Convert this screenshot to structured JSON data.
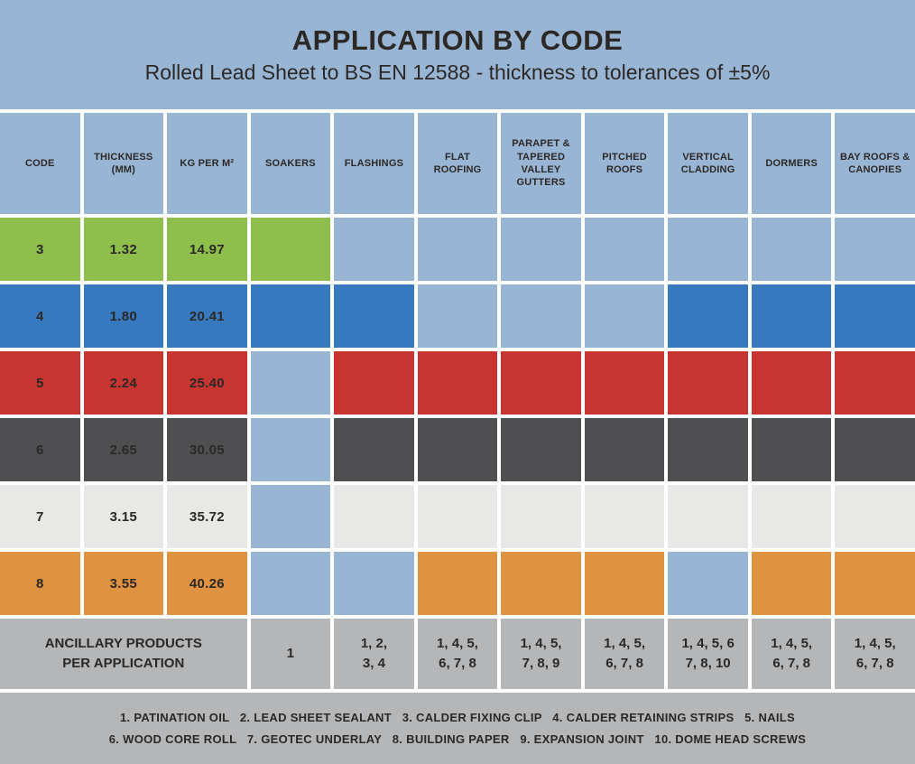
{
  "colors": {
    "background": "#99b5d4",
    "inactive_cell": "#99b5d4",
    "grid": "#ffffff",
    "band_gray": "#b5b6b8",
    "text": "#2b2826",
    "row_green": "#8ebf4d",
    "row_blue": "#3779be",
    "row_red": "#c83530",
    "row_darkgray": "#4f4f51",
    "row_lightgray": "#e8e8e7",
    "row_orange": "#df9240"
  },
  "chart_data": {
    "type": "table",
    "title": "APPLICATION BY CODE",
    "subtitle": "Rolled Lead Sheet to BS EN 12588 - thickness to tolerances of ±5%",
    "columns": [
      "CODE",
      "THICKNESS (MM)",
      "KG PER M²",
      "SOAKERS",
      "FLASHINGS",
      "FLAT ROOFING",
      "PARAPET & TAPERED VALLEY GUTTERS",
      "PITCHED ROOFS",
      "VERTICAL CLADDING",
      "DORMERS",
      "BAY ROOFS & CANOPIES"
    ],
    "application_columns": [
      "SOAKERS",
      "FLASHINGS",
      "FLAT ROOFING",
      "PARAPET & TAPERED VALLEY GUTTERS",
      "PITCHED ROOFS",
      "VERTICAL CLADDING",
      "DORMERS",
      "BAY ROOFS & CANOPIES"
    ],
    "rows": [
      {
        "code": "3",
        "thickness_mm": "1.32",
        "kg_per_m2": "14.97",
        "color": "#8ebf4d",
        "applications": [
          true,
          false,
          false,
          false,
          false,
          false,
          false,
          false
        ]
      },
      {
        "code": "4",
        "thickness_mm": "1.80",
        "kg_per_m2": "20.41",
        "color": "#3779be",
        "applications": [
          true,
          true,
          false,
          false,
          false,
          true,
          true,
          true
        ]
      },
      {
        "code": "5",
        "thickness_mm": "2.24",
        "kg_per_m2": "25.40",
        "color": "#c83530",
        "applications": [
          false,
          true,
          true,
          true,
          true,
          true,
          true,
          true
        ]
      },
      {
        "code": "6",
        "thickness_mm": "2.65",
        "kg_per_m2": "30.05",
        "color": "#4f4f51",
        "applications": [
          false,
          true,
          true,
          true,
          true,
          true,
          true,
          true
        ]
      },
      {
        "code": "7",
        "thickness_mm": "3.15",
        "kg_per_m2": "35.72",
        "color": "#e8e8e7",
        "applications": [
          false,
          true,
          true,
          true,
          true,
          true,
          true,
          true
        ]
      },
      {
        "code": "8",
        "thickness_mm": "3.55",
        "kg_per_m2": "40.26",
        "color": "#df9240",
        "applications": [
          false,
          false,
          true,
          true,
          true,
          false,
          true,
          true
        ]
      }
    ],
    "ancillary": {
      "label": "ANCILLARY PRODUCTS\nPER APPLICATION",
      "values": [
        "1",
        "1, 2,\n3, 4",
        "1, 4, 5,\n6, 7, 8",
        "1, 4, 5,\n7, 8, 9",
        "1, 4, 5,\n6, 7, 8",
        "1, 4, 5, 6\n7, 8, 10",
        "1, 4, 5,\n6, 7, 8",
        "1, 4, 5,\n6, 7, 8"
      ]
    },
    "legend": [
      "1. PATINATION OIL   2. LEAD SHEET SEALANT   3. CALDER FIXING CLIP   4. CALDER RETAINING STRIPS   5. NAILS",
      "6. WOOD CORE ROLL   7. GEOTEC UNDERLAY   8. BUILDING PAPER   9. EXPANSION JOINT   10. DOME HEAD SCREWS"
    ]
  }
}
